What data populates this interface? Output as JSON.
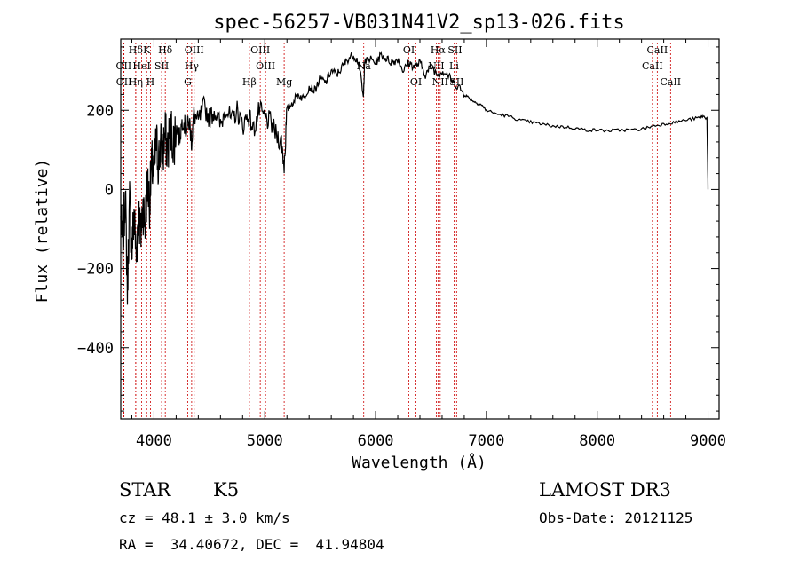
{
  "chart_data": {
    "type": "line",
    "title": "spec-56257-VB031N41V2_sp13-026.fits",
    "xlabel": "Wavelength (Å)",
    "ylabel": "Flux (relative)",
    "xlim": [
      3700,
      9100
    ],
    "ylim": [
      -580,
      380
    ],
    "x_ticks": [
      4000,
      5000,
      6000,
      7000,
      8000,
      9000
    ],
    "y_ticks": [
      -400,
      -200,
      0,
      200
    ],
    "x_tick_labels": [
      "4000",
      "5000",
      "6000",
      "7000",
      "8000",
      "9000"
    ],
    "y_tick_labels": [
      "−400",
      "−200",
      "0",
      "200"
    ],
    "series": [
      {
        "name": "flux",
        "points": [
          [
            3700,
            -80
          ],
          [
            3720,
            -150
          ],
          [
            3740,
            0
          ],
          [
            3760,
            -250
          ],
          [
            3780,
            -30
          ],
          [
            3800,
            -160
          ],
          [
            3820,
            -60
          ],
          [
            3840,
            -170
          ],
          [
            3860,
            -50
          ],
          [
            3880,
            -120
          ],
          [
            3900,
            -40
          ],
          [
            3920,
            -90
          ],
          [
            3940,
            20
          ],
          [
            3960,
            -30
          ],
          [
            3980,
            60
          ],
          [
            4000,
            40
          ],
          [
            4020,
            120
          ],
          [
            4040,
            70
          ],
          [
            4060,
            110
          ],
          [
            4080,
            90
          ],
          [
            4100,
            140
          ],
          [
            4120,
            100
          ],
          [
            4150,
            150
          ],
          [
            4180,
            120
          ],
          [
            4200,
            160
          ],
          [
            4230,
            130
          ],
          [
            4260,
            180
          ],
          [
            4290,
            150
          ],
          [
            4320,
            170
          ],
          [
            4340,
            120
          ],
          [
            4360,
            190
          ],
          [
            4400,
            170
          ],
          [
            4450,
            210
          ],
          [
            4500,
            180
          ],
          [
            4550,
            200
          ],
          [
            4600,
            160
          ],
          [
            4650,
            210
          ],
          [
            4700,
            170
          ],
          [
            4750,
            200
          ],
          [
            4800,
            160
          ],
          [
            4850,
            190
          ],
          [
            4900,
            150
          ],
          [
            4950,
            200
          ],
          [
            5000,
            180
          ],
          [
            5050,
            170
          ],
          [
            5100,
            140
          ],
          [
            5150,
            120
          ],
          [
            5175,
            60
          ],
          [
            5200,
            200
          ],
          [
            5250,
            220
          ],
          [
            5300,
            240
          ],
          [
            5350,
            230
          ],
          [
            5400,
            260
          ],
          [
            5450,
            250
          ],
          [
            5500,
            280
          ],
          [
            5550,
            270
          ],
          [
            5600,
            300
          ],
          [
            5650,
            290
          ],
          [
            5700,
            310
          ],
          [
            5750,
            330
          ],
          [
            5800,
            340
          ],
          [
            5850,
            320
          ],
          [
            5890,
            230
          ],
          [
            5900,
            320
          ],
          [
            5950,
            330
          ],
          [
            6000,
            320
          ],
          [
            6050,
            340
          ],
          [
            6100,
            330
          ],
          [
            6150,
            320
          ],
          [
            6200,
            330
          ],
          [
            6250,
            300
          ],
          [
            6300,
            320
          ],
          [
            6350,
            310
          ],
          [
            6400,
            320
          ],
          [
            6450,
            290
          ],
          [
            6500,
            310
          ],
          [
            6563,
            290
          ],
          [
            6600,
            300
          ],
          [
            6650,
            290
          ],
          [
            6700,
            270
          ],
          [
            6750,
            260
          ],
          [
            6800,
            240
          ],
          [
            6850,
            230
          ],
          [
            6900,
            220
          ],
          [
            6950,
            215
          ],
          [
            7000,
            200
          ],
          [
            7100,
            190
          ],
          [
            7200,
            185
          ],
          [
            7300,
            175
          ],
          [
            7400,
            170
          ],
          [
            7500,
            165
          ],
          [
            7600,
            160
          ],
          [
            7700,
            158
          ],
          [
            7800,
            155
          ],
          [
            7900,
            150
          ],
          [
            8000,
            150
          ],
          [
            8100,
            148
          ],
          [
            8200,
            150
          ],
          [
            8300,
            150
          ],
          [
            8400,
            152
          ],
          [
            8500,
            160
          ],
          [
            8600,
            165
          ],
          [
            8700,
            170
          ],
          [
            8800,
            175
          ],
          [
            8900,
            180
          ],
          [
            8950,
            185
          ],
          [
            8990,
            180
          ],
          [
            9000,
            0
          ]
        ]
      }
    ],
    "spectral_lines": [
      {
        "label": "Hδ",
        "x": 3835,
        "row": 0
      },
      {
        "label": "OII",
        "x": 3727,
        "row": 1
      },
      {
        "label": "OII",
        "x": 3729,
        "row": 2
      },
      {
        "label": "K",
        "x": 3934,
        "row": 0
      },
      {
        "label": "HeI",
        "x": 3889,
        "row": 1
      },
      {
        "label": "Hη",
        "x": 3835,
        "row": 2
      },
      {
        "label": "SII",
        "x": 4069,
        "row": 1
      },
      {
        "label": "H",
        "x": 3968,
        "row": 2
      },
      {
        "label": "Hδ",
        "x": 4102,
        "row": 0
      },
      {
        "label": "OIII",
        "x": 4363,
        "row": 0
      },
      {
        "label": "Hγ",
        "x": 4340,
        "row": 1
      },
      {
        "label": "G",
        "x": 4305,
        "row": 2
      },
      {
        "label": "OIII",
        "x": 4959,
        "row": 0
      },
      {
        "label": "OIII",
        "x": 5007,
        "row": 1
      },
      {
        "label": "Hβ",
        "x": 4861,
        "row": 2
      },
      {
        "label": "Mg",
        "x": 5175,
        "row": 2
      },
      {
        "label": "Na",
        "x": 5893,
        "row": 1
      },
      {
        "label": "OI",
        "x": 6300,
        "row": 0
      },
      {
        "label": "OI",
        "x": 6364,
        "row": 2
      },
      {
        "label": "Hα",
        "x": 6563,
        "row": 0
      },
      {
        "label": "SII",
        "x": 6716,
        "row": 0
      },
      {
        "label": "NII",
        "x": 6548,
        "row": 1
      },
      {
        "label": "Li",
        "x": 6708,
        "row": 1
      },
      {
        "label": "NII",
        "x": 6583,
        "row": 2
      },
      {
        "label": "SII",
        "x": 6731,
        "row": 2
      },
      {
        "label": "CaII",
        "x": 8542,
        "row": 0
      },
      {
        "label": "CaII",
        "x": 8498,
        "row": 1
      },
      {
        "label": "CaII",
        "x": 8662,
        "row": 2
      }
    ],
    "line_colors": {
      "spectrum": "#000000",
      "marker": "#cc0000"
    }
  },
  "info": {
    "class": "STAR",
    "subclass": "K5",
    "survey": "LAMOST DR3",
    "cz": "cz = 48.1 ± 3.0 km/s",
    "obs_date": "Obs-Date: 20121125",
    "coords": "RA =  34.40672, DEC =  41.94804"
  }
}
